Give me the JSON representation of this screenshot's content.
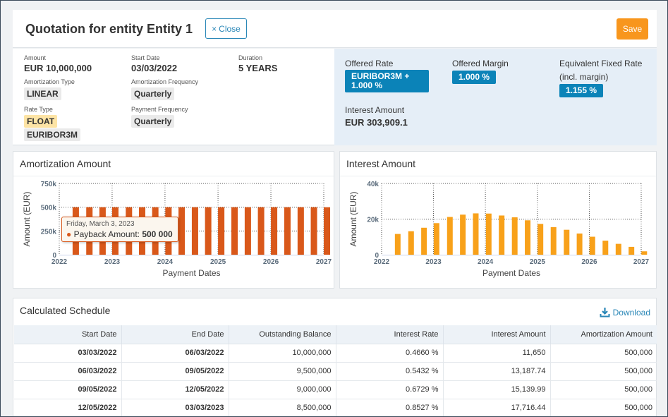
{
  "header": {
    "title": "Quotation for entity Entity 1",
    "close_label": "Close",
    "save_label": "Save"
  },
  "summary": {
    "amount_label": "Amount",
    "amount_value": "EUR 10,000,000",
    "start_date_label": "Start Date",
    "start_date_value": "03/03/2022",
    "duration_label": "Duration",
    "duration_value": "5 YEARS",
    "amortization_type_label": "Amortization Type",
    "amortization_type_value": "LINEAR",
    "amortization_frequency_label": "Amortization Frequency",
    "amortization_frequency_value": "Quarterly",
    "rate_type_label": "Rate Type",
    "rate_type_value": "FLOAT",
    "rate_index_value": "EURIBOR3M",
    "payment_frequency_label": "Payment Frequency",
    "payment_frequency_value": "Quarterly",
    "offered_rate_label": "Offered Rate",
    "offered_rate_line1": "EURIBOR3M +",
    "offered_rate_line2": "1.000 %",
    "offered_margin_label": "Offered Margin",
    "offered_margin_value": "1.000 %",
    "equiv_rate_label_1": "Equivalent Fixed Rate",
    "equiv_rate_label_2": "(incl. margin)",
    "equiv_rate_value": "1.155 %",
    "interest_amount_label": "Interest Amount",
    "interest_amount_value": "EUR 303,909.1"
  },
  "charts": {
    "amortization": {
      "title": "Amortization Amount",
      "tooltip_date": "Friday, March 3, 2023",
      "tooltip_label": "Payback Amount:",
      "tooltip_value": "500 000"
    },
    "interest": {
      "title": "Interest Amount"
    }
  },
  "chart_data": [
    {
      "type": "bar",
      "title": "Amortization Amount",
      "xlabel": "Payment Dates",
      "ylabel": "Amount (EUR)",
      "x_ticks": [
        "2022",
        "2023",
        "2024",
        "2025",
        "2026",
        "2027"
      ],
      "y_ticks": [
        "0",
        "250k",
        "500k",
        "750k"
      ],
      "ylim": [
        0,
        750000
      ],
      "x": [
        "2022-06-03",
        "2022-09-05",
        "2022-12-05",
        "2023-03-03",
        "2023-06-05",
        "2023-09-04",
        "2023-12-04",
        "2024-03-04",
        "2024-06-03",
        "2024-09-03",
        "2024-12-03",
        "2025-03-03",
        "2025-06-03",
        "2025-09-03",
        "2025-12-03",
        "2026-03-03",
        "2026-06-03",
        "2026-09-03",
        "2026-12-03",
        "2027-03-03"
      ],
      "values": [
        500000,
        500000,
        500000,
        500000,
        500000,
        500000,
        500000,
        500000,
        500000,
        500000,
        500000,
        500000,
        500000,
        500000,
        500000,
        500000,
        500000,
        500000,
        500000,
        500000
      ],
      "color": "#d9581a",
      "grid": true
    },
    {
      "type": "bar",
      "title": "Interest Amount",
      "xlabel": "Payment Dates",
      "ylabel": "Amount (EUR)",
      "x_ticks": [
        "2022",
        "2023",
        "2024",
        "2025",
        "2026",
        "2027"
      ],
      "y_ticks": [
        "0",
        "20k",
        "40k"
      ],
      "ylim": [
        0,
        40000
      ],
      "x": [
        "2022-06-03",
        "2022-09-05",
        "2022-12-05",
        "2023-03-03",
        "2023-06-05",
        "2023-09-04",
        "2023-12-04",
        "2024-03-04",
        "2024-06-03",
        "2024-09-03",
        "2024-12-03",
        "2025-03-03",
        "2025-06-03",
        "2025-09-03",
        "2025-12-03",
        "2026-03-03",
        "2026-06-03",
        "2026-09-03",
        "2026-12-03",
        "2027-03-03"
      ],
      "values": [
        11650,
        13188,
        15140,
        17716,
        21200,
        22500,
        23200,
        23100,
        22000,
        21000,
        19300,
        17300,
        15500,
        14000,
        11900,
        10100,
        7900,
        6100,
        4400,
        1900
      ],
      "color": "#f8a11a",
      "grid": true
    }
  ],
  "schedule": {
    "title": "Calculated Schedule",
    "download_label": "Download",
    "columns": [
      "Start Date",
      "End Date",
      "Outstanding Balance",
      "Interest Rate",
      "Interest Amount",
      "Amortization Amount"
    ],
    "rows": [
      [
        "03/03/2022",
        "06/03/2022",
        "10,000,000",
        "0.4660 %",
        "11,650",
        "500,000"
      ],
      [
        "06/03/2022",
        "09/05/2022",
        "9,500,000",
        "0.5432 %",
        "13,187.74",
        "500,000"
      ],
      [
        "09/05/2022",
        "12/05/2022",
        "9,000,000",
        "0.6729 %",
        "15,139.99",
        "500,000"
      ],
      [
        "12/05/2022",
        "03/03/2023",
        "8,500,000",
        "0.8527 %",
        "17,716.44",
        "500,000"
      ]
    ]
  },
  "colors": {
    "accent": "#2a87b7",
    "save": "#f8961d",
    "badge": "#0b83b8",
    "amort_bar": "#d9581a",
    "interest_bar": "#f8a11a",
    "float_tag": "#fde4a5"
  }
}
